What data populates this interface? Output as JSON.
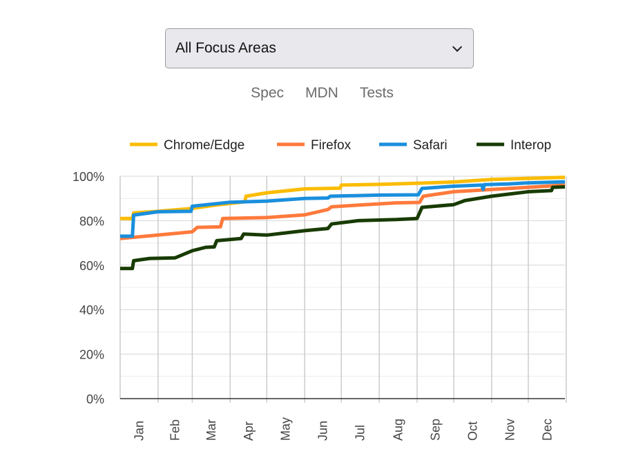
{
  "select": {
    "value": "All Focus Areas",
    "icon": "chevron-down-icon"
  },
  "tabs": [
    "Spec",
    "MDN",
    "Tests"
  ],
  "chart_data": {
    "type": "line",
    "title": "",
    "xlabel": "",
    "ylabel": "",
    "ylim": [
      0,
      100
    ],
    "yticks": [
      "0%",
      "20%",
      "40%",
      "60%",
      "80%",
      "100%"
    ],
    "xtick_labels": [
      "Jan",
      "Feb",
      "Mar",
      "Apr",
      "May",
      "Jun",
      "Jul",
      "Aug",
      "Sep",
      "Oct",
      "Nov",
      "Dec"
    ],
    "grid": true,
    "legend_position": "top",
    "series": [
      {
        "name": "Chrome/Edge",
        "color": "#fbbc04",
        "points": [
          [
            "01-01",
            81
          ],
          [
            "01-11",
            81
          ],
          [
            "01-12",
            83.5
          ],
          [
            "02-01",
            84.2
          ],
          [
            "03-01",
            85.5
          ],
          [
            "03-20",
            87
          ],
          [
            "04-13",
            88.5
          ],
          [
            "04-14",
            91
          ],
          [
            "05-01",
            92.5
          ],
          [
            "06-01",
            94.3
          ],
          [
            "06-30",
            94.6
          ],
          [
            "07-01",
            96
          ],
          [
            "08-01",
            96.3
          ],
          [
            "09-01",
            96.8
          ],
          [
            "10-01",
            97.4
          ],
          [
            "11-01",
            98.5
          ],
          [
            "12-01",
            99
          ],
          [
            "12-31",
            99.5
          ]
        ]
      },
      {
        "name": "Firefox",
        "color": "#ff7a3c",
        "points": [
          [
            "01-01",
            72
          ],
          [
            "02-01",
            73.5
          ],
          [
            "03-01",
            75
          ],
          [
            "03-05",
            77
          ],
          [
            "03-24",
            77.2
          ],
          [
            "03-26",
            81
          ],
          [
            "05-01",
            81.4
          ],
          [
            "06-01",
            82.6
          ],
          [
            "06-20",
            85
          ],
          [
            "06-23",
            86.2
          ],
          [
            "07-15",
            87
          ],
          [
            "08-15",
            88
          ],
          [
            "09-03",
            88.2
          ],
          [
            "09-06",
            91
          ],
          [
            "10-01",
            93
          ],
          [
            "11-01",
            94
          ],
          [
            "12-01",
            95
          ],
          [
            "12-31",
            96
          ]
        ]
      },
      {
        "name": "Safari",
        "color": "#1a8fdd",
        "points": [
          [
            "01-01",
            73
          ],
          [
            "01-11",
            73
          ],
          [
            "01-12",
            82.5
          ],
          [
            "02-01",
            84
          ],
          [
            "02-28",
            84.2
          ],
          [
            "03-01",
            86.5
          ],
          [
            "04-01",
            88.3
          ],
          [
            "05-01",
            88.8
          ],
          [
            "06-01",
            90
          ],
          [
            "06-20",
            90.2
          ],
          [
            "06-22",
            91
          ],
          [
            "08-01",
            91.5
          ],
          [
            "09-02",
            91.6
          ],
          [
            "09-05",
            94.5
          ],
          [
            "10-01",
            95.5
          ],
          [
            "10-24",
            96
          ],
          [
            "10-25",
            94
          ],
          [
            "10-26",
            96.2
          ],
          [
            "11-15",
            96.5
          ],
          [
            "12-01",
            97
          ],
          [
            "12-31",
            97.5
          ]
        ]
      },
      {
        "name": "Interop",
        "color": "#183b00",
        "points": [
          [
            "01-01",
            58.5
          ],
          [
            "01-11",
            58.5
          ],
          [
            "01-12",
            62
          ],
          [
            "01-25",
            63
          ],
          [
            "02-15",
            63.3
          ],
          [
            "03-01",
            66.5
          ],
          [
            "03-12",
            68
          ],
          [
            "03-19",
            68.2
          ],
          [
            "03-21",
            71
          ],
          [
            "04-10",
            72
          ],
          [
            "04-12",
            74
          ],
          [
            "05-01",
            73.5
          ],
          [
            "06-01",
            75.5
          ],
          [
            "06-20",
            76.5
          ],
          [
            "06-23",
            78.5
          ],
          [
            "07-15",
            80
          ],
          [
            "08-15",
            80.5
          ],
          [
            "09-01",
            81
          ],
          [
            "09-05",
            86
          ],
          [
            "10-01",
            87.2
          ],
          [
            "10-10",
            89
          ],
          [
            "11-01",
            91
          ],
          [
            "12-01",
            93
          ],
          [
            "12-20",
            93.5
          ],
          [
            "12-21",
            95
          ],
          [
            "12-31",
            95.2
          ]
        ]
      }
    ]
  }
}
